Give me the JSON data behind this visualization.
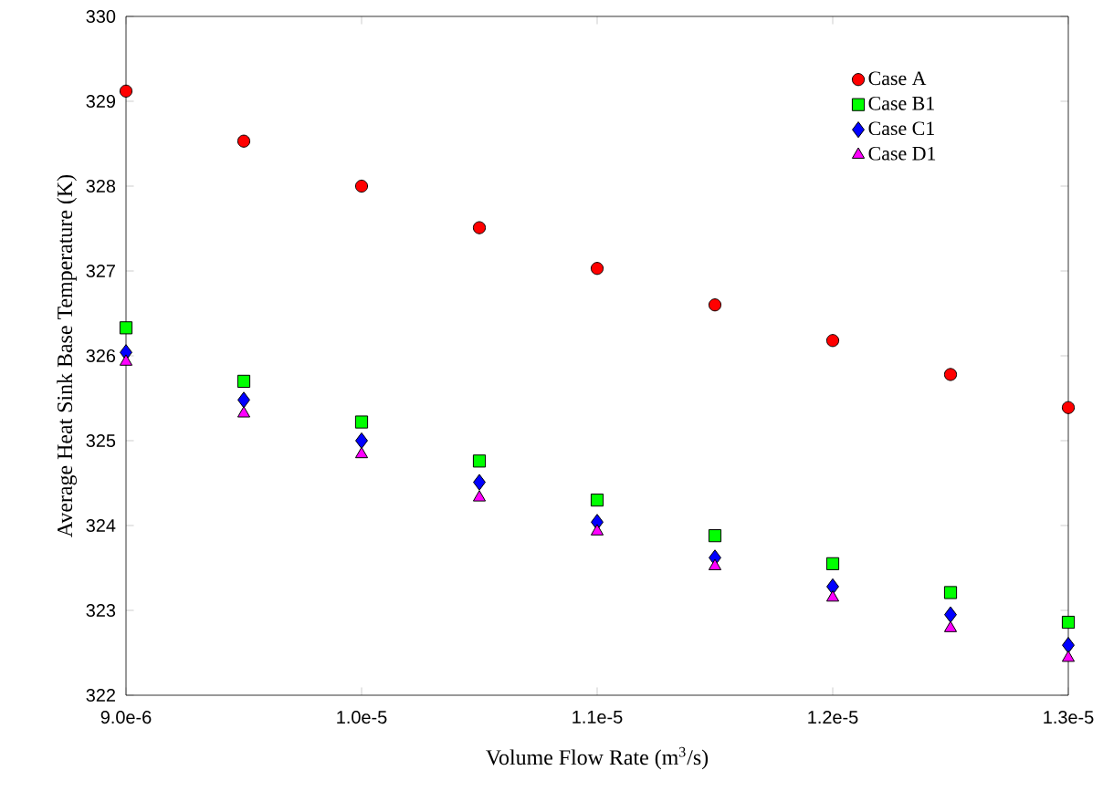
{
  "chart_data": {
    "type": "scatter",
    "xlabel": "Volume Flow Rate (m$^{3}$/s)",
    "ylabel": "Average Heat Sink Base Temperature (K)",
    "x": [
      9e-06,
      9.5e-06,
      1e-05,
      1.05e-05,
      1.1e-05,
      1.15e-05,
      1.2e-05,
      1.25e-05,
      1.3e-05
    ],
    "xlim": [
      9e-06,
      1.3e-05
    ],
    "xticks": [
      {
        "value": 9e-06,
        "label": "9.0e-6"
      },
      {
        "value": 1e-05,
        "label": "1.0e-5"
      },
      {
        "value": 1.1e-05,
        "label": "1.1e-5"
      },
      {
        "value": 1.2e-05,
        "label": "1.2e-5"
      },
      {
        "value": 1.3e-05,
        "label": "1.3e-5"
      }
    ],
    "ylim": [
      322,
      330
    ],
    "yticks": [
      322,
      323,
      324,
      325,
      326,
      327,
      328,
      329,
      330
    ],
    "grid": false,
    "legend": "top right",
    "series": [
      {
        "name": "Case A",
        "color": "#ff0000",
        "marker": "circle",
        "values": [
          329.12,
          328.53,
          328.0,
          327.51,
          327.03,
          326.6,
          326.18,
          325.78,
          325.39
        ]
      },
      {
        "name": "Case B1",
        "color": "#00ff00",
        "marker": "square",
        "values": [
          326.33,
          325.7,
          325.22,
          324.76,
          324.3,
          323.88,
          323.55,
          323.21,
          322.86
        ]
      },
      {
        "name": "Case C1",
        "color": "#0000ff",
        "marker": "diamond",
        "values": [
          326.04,
          325.48,
          325.0,
          324.51,
          324.04,
          323.62,
          323.28,
          322.95,
          322.59
        ]
      },
      {
        "name": "Case D1",
        "color": "#ff00ff",
        "marker": "triangle",
        "values": [
          325.93,
          325.32,
          324.84,
          324.33,
          323.93,
          323.52,
          323.15,
          322.79,
          322.44
        ]
      }
    ]
  }
}
